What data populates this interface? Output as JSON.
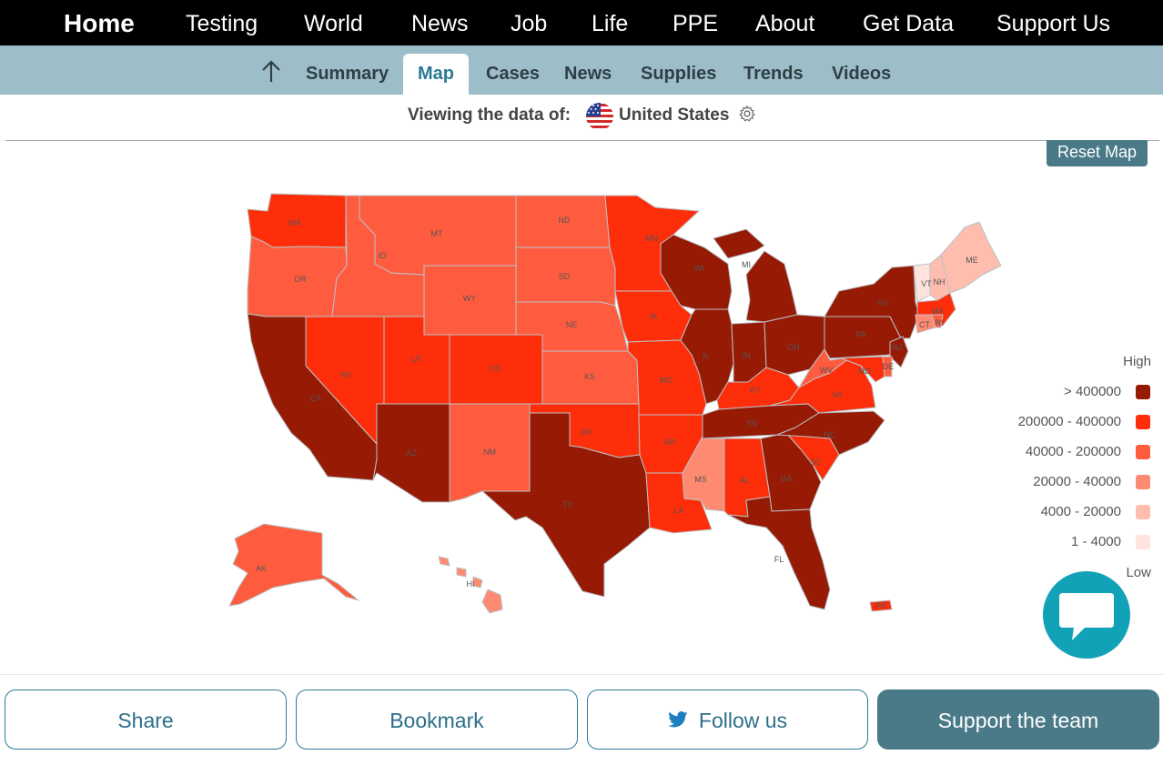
{
  "nav": {
    "items": [
      "Home",
      "Testing",
      "World",
      "News",
      "Job",
      "Life",
      "PPE",
      "About",
      "Get Data",
      "Support Us"
    ]
  },
  "subnav": {
    "tabs": [
      "Summary",
      "Map",
      "Cases",
      "News",
      "Supplies",
      "Trends",
      "Videos"
    ],
    "active_tab": "Map"
  },
  "viewing": {
    "label": "Viewing the data of:",
    "country": "United States"
  },
  "map": {
    "reset_label": "Reset Map",
    "states": [
      "WA",
      "OR",
      "CA",
      "ID",
      "NV",
      "MT",
      "WY",
      "UT",
      "AZ",
      "CO",
      "NM",
      "ND",
      "SD",
      "NE",
      "KS",
      "OK",
      "TX",
      "MN",
      "IA",
      "MO",
      "AR",
      "LA",
      "WI",
      "IL",
      "MI",
      "IN",
      "OH",
      "KY",
      "TN",
      "MS",
      "AL",
      "GA",
      "FL",
      "SC",
      "NC",
      "VA",
      "WV",
      "PA",
      "NY",
      "VT",
      "NH",
      "ME",
      "MA",
      "CT",
      "RI",
      "NJ",
      "DE",
      "MD",
      "AK",
      "HI",
      "PR"
    ]
  },
  "legend": {
    "high_label": "High",
    "low_label": "Low",
    "ranges": [
      {
        "label": "> 400000",
        "color": "#971a05"
      },
      {
        "label": "200000 - 400000",
        "color": "#ff2e0a"
      },
      {
        "label": "40000 - 200000",
        "color": "#ff5c3f"
      },
      {
        "label": "20000 - 40000",
        "color": "#ff8a72"
      },
      {
        "label": "4000 - 20000",
        "color": "#ffbdae"
      },
      {
        "label": "1 - 4000",
        "color": "#ffe3dc"
      }
    ]
  },
  "footer": {
    "share": "Share",
    "bookmark": "Bookmark",
    "follow": "Follow us",
    "support": "Support the team"
  }
}
